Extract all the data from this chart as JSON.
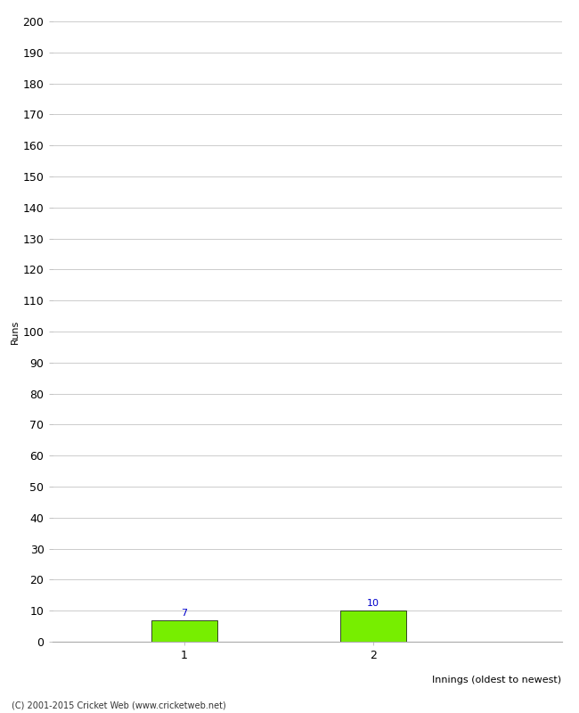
{
  "categories": [
    "1",
    "2"
  ],
  "values": [
    7,
    10
  ],
  "bar_color": "#77ee00",
  "bar_edge_color": "#000000",
  "ylabel": "Runs",
  "xlabel": "Innings (oldest to newest)",
  "ylim": [
    0,
    200
  ],
  "yticks": [
    0,
    10,
    20,
    30,
    40,
    50,
    60,
    70,
    80,
    90,
    100,
    110,
    120,
    130,
    140,
    150,
    160,
    170,
    180,
    190,
    200
  ],
  "background_color": "#ffffff",
  "grid_color": "#cccccc",
  "footer_text": "(C) 2001-2015 Cricket Web (www.cricketweb.net)",
  "bar_width": 0.35,
  "label_color": "#0000cc",
  "label_fontsize": 8,
  "tick_fontsize": 9,
  "ylabel_fontsize": 8,
  "xlabel_fontsize": 8
}
